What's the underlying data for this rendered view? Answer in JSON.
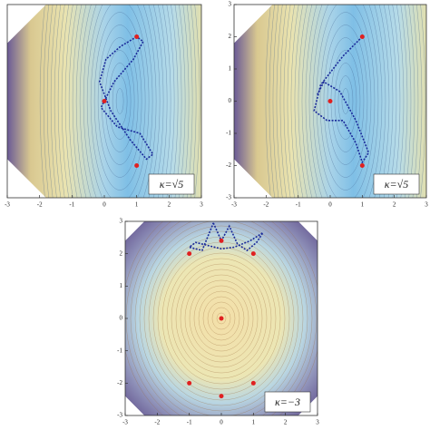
{
  "chart_data": [
    {
      "type": "contour",
      "xlim": [
        -3,
        3
      ],
      "ylim": [
        -3,
        3
      ],
      "xticks": [
        -3,
        -2,
        -1,
        0,
        1,
        2,
        3
      ],
      "annotation": "κ=√5",
      "points": {
        "color": "#e02020",
        "x": [
          1,
          0,
          1
        ],
        "y": [
          2,
          0,
          -2
        ]
      },
      "trajectory": {
        "color": "#1a2a9a",
        "x": [
          1,
          0.5,
          0.05,
          -0.15,
          0.2,
          0.8,
          1.3,
          1.5,
          1.1,
          0.4,
          -0.1,
          0.3,
          0.9,
          1.2,
          1
        ],
        "y": [
          2,
          1.7,
          1.3,
          0.6,
          -0.3,
          -1.2,
          -1.8,
          -1.65,
          -1.0,
          -0.8,
          -0.2,
          0.6,
          1.3,
          1.85,
          2
        ]
      }
    },
    {
      "type": "contour",
      "xlim": [
        -3,
        3
      ],
      "ylim": [
        -3,
        3
      ],
      "xticks": [
        -3,
        -2,
        -1,
        0,
        1,
        2,
        3
      ],
      "yticks": [
        -3,
        -2,
        -1,
        0,
        1,
        2,
        3
      ],
      "annotation": "κ=√5",
      "points": {
        "color": "#e02020",
        "x": [
          1,
          0,
          1
        ],
        "y": [
          2,
          0,
          -2
        ]
      },
      "trajectory": {
        "color": "#1a2a9a",
        "x": [
          1,
          0.4,
          -0.3,
          -0.5,
          -0.1,
          0.4,
          0.8,
          1.0,
          1.2,
          0.8,
          0.3,
          -0.2,
          -0.4
        ],
        "y": [
          2,
          1.4,
          0.5,
          -0.3,
          -0.6,
          -0.6,
          -1.3,
          -1.9,
          -1.6,
          -0.6,
          0.3,
          0.6,
          0.2
        ]
      }
    },
    {
      "type": "contour",
      "xlim": [
        -3,
        3
      ],
      "ylim": [
        -3,
        3
      ],
      "xticks": [
        -3,
        -2,
        -1,
        0,
        1,
        2,
        3
      ],
      "yticks": [
        -3,
        -2,
        -1,
        0,
        1,
        2,
        3
      ],
      "annotation": "κ=−3",
      "points": {
        "color": "#e02020",
        "x": [
          0,
          0,
          -1,
          1,
          -1,
          1,
          0
        ],
        "y": [
          0,
          2.4,
          2,
          2,
          -2,
          -2,
          -2.4
        ]
      },
      "trajectory": {
        "color": "#1a2a9a",
        "x": [
          -0.25,
          0,
          0.25,
          0.5,
          0.8,
          1.1,
          1.3,
          0.9,
          0.4,
          0,
          -0.4,
          -0.8,
          -1.0,
          -0.6,
          -0.25
        ],
        "y": [
          2.95,
          2.4,
          2.85,
          2.3,
          2.1,
          2.35,
          2.65,
          2.4,
          2.2,
          2.15,
          2.25,
          2.35,
          2.2,
          2.1,
          2.95
        ]
      }
    }
  ]
}
